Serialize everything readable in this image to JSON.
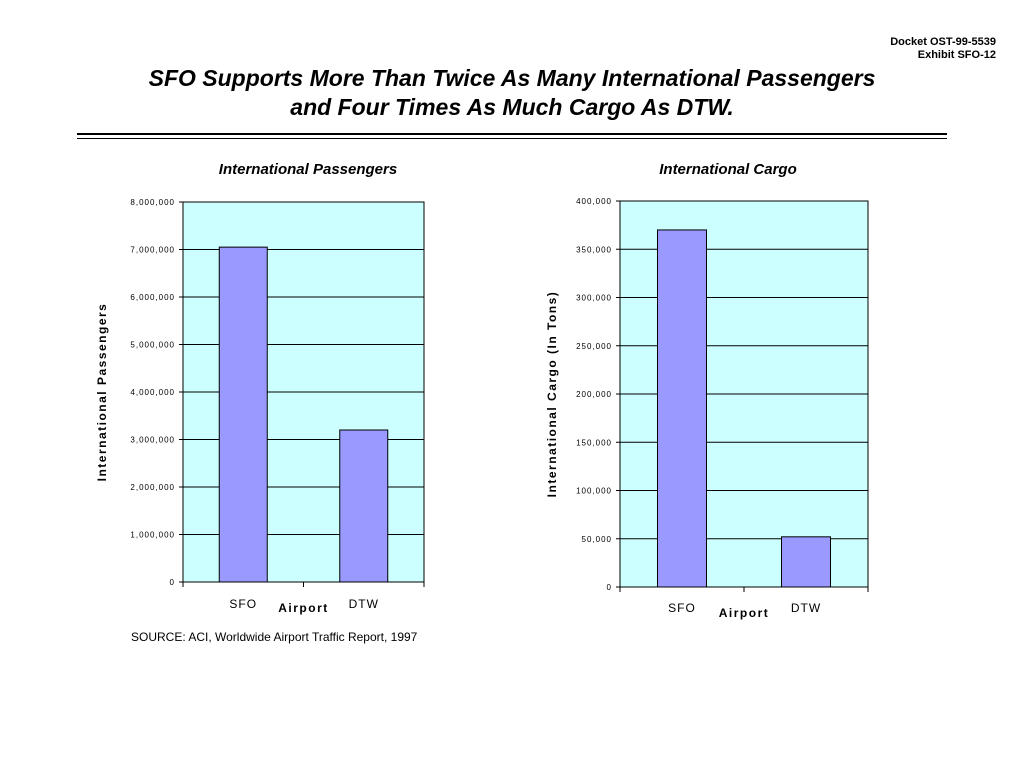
{
  "docket": {
    "line1": "Docket OST-99-5539",
    "line2": "Exhibit SFO-12"
  },
  "title": {
    "line1": "SFO Supports More Than Twice As Many International Passengers",
    "line2": "and Four Times As Much Cargo As DTW."
  },
  "source": "SOURCE:  ACI, Worldwide Airport Traffic Report, 1997",
  "colors": {
    "plot_bg": "#ccffff",
    "bar": "#9999ff",
    "bar_stroke": "#000000",
    "grid": "#000000"
  },
  "chart_data": [
    {
      "type": "bar",
      "title": "International Passengers",
      "xlabel": "Airport",
      "ylabel": "International Passengers",
      "categories": [
        "SFO",
        "DTW"
      ],
      "values": [
        7050000,
        3200000
      ],
      "ylim": [
        0,
        8000000
      ],
      "yticks": [
        0,
        1000000,
        2000000,
        3000000,
        4000000,
        5000000,
        6000000,
        7000000,
        8000000
      ],
      "ytick_labels": [
        "0",
        "1,000,000",
        "2,000,000",
        "3,000,000",
        "4,000,000",
        "5,000,000",
        "6,000,000",
        "7,000,000",
        "8,000,000"
      ],
      "grid": true
    },
    {
      "type": "bar",
      "title": "International Cargo",
      "xlabel": "Airport",
      "ylabel": "International Cargo (In Tons)",
      "categories": [
        "SFO",
        "DTW"
      ],
      "values": [
        370000,
        52000
      ],
      "ylim": [
        0,
        400000
      ],
      "yticks": [
        0,
        50000,
        100000,
        150000,
        200000,
        250000,
        300000,
        350000,
        400000
      ],
      "ytick_labels": [
        "0",
        "50,000",
        "100,000",
        "150,000",
        "200,000",
        "250,000",
        "300,000",
        "350,000",
        "400,000"
      ],
      "grid": true
    }
  ]
}
